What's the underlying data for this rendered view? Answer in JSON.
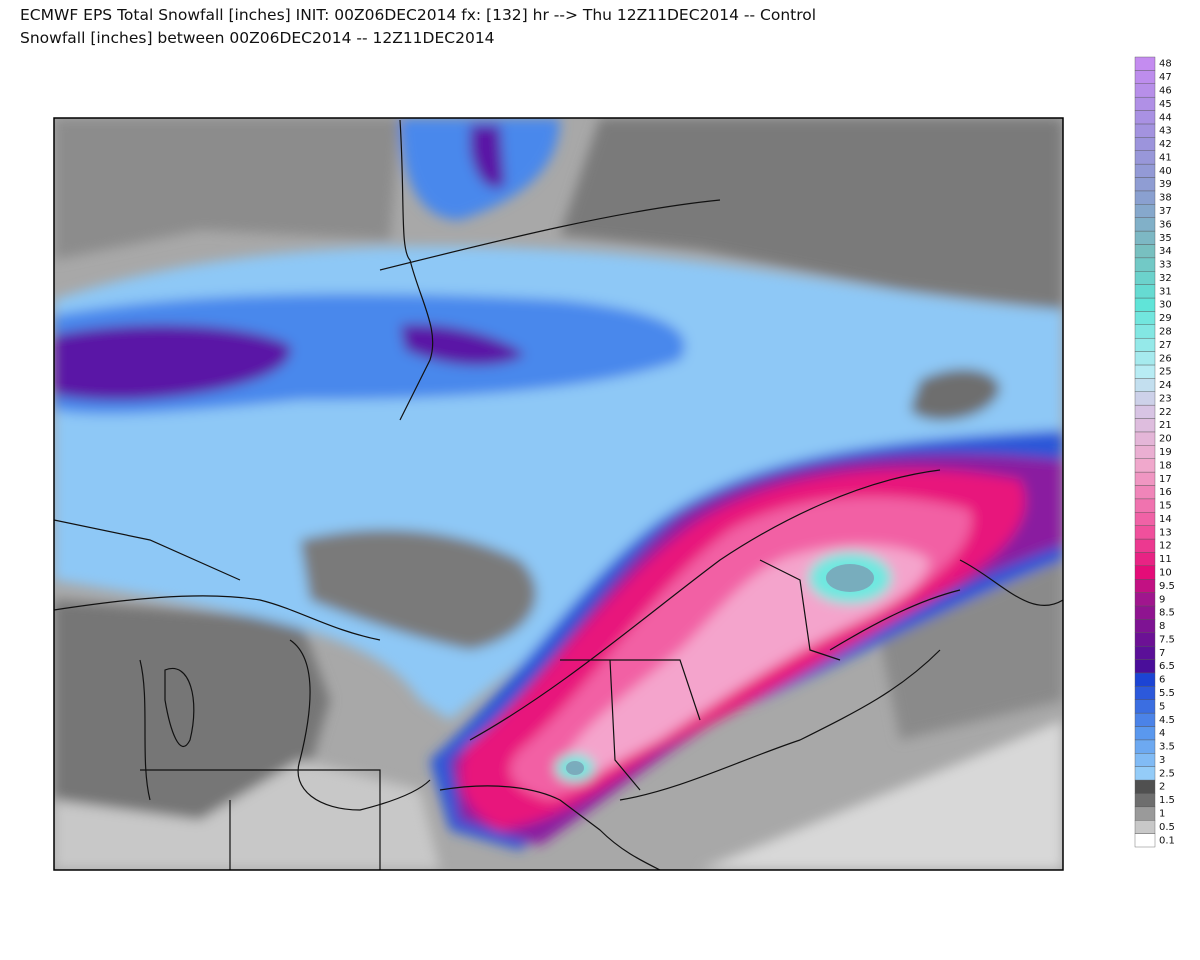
{
  "header": {
    "title_lines": [
      "ECMWF EPS Total Snowfall [inches] INIT: 00Z06DEC2014 fx: [132] hr --> Thu 12Z11DEC2014 -- Control",
      "Snowfall [inches] between 00Z06DEC2014 -- 12Z11DEC2014"
    ]
  },
  "legend": {
    "labels": [
      "0.1",
      "0.5",
      "1",
      "1.5",
      "2",
      "2.5",
      "3",
      "3.5",
      "4",
      "4.5",
      "5",
      "5.5",
      "6",
      "6.5",
      "7",
      "7.5",
      "8",
      "8.5",
      "9",
      "9.5",
      "10",
      "11",
      "12",
      "13",
      "14",
      "15",
      "16",
      "17",
      "18",
      "19",
      "20",
      "21",
      "22",
      "23",
      "24",
      "25",
      "26",
      "27",
      "28",
      "29",
      "30",
      "31",
      "32",
      "33",
      "34",
      "35",
      "36",
      "37",
      "38",
      "39",
      "40",
      "41",
      "42",
      "43",
      "44",
      "45",
      "46",
      "47",
      "48"
    ]
  }
}
